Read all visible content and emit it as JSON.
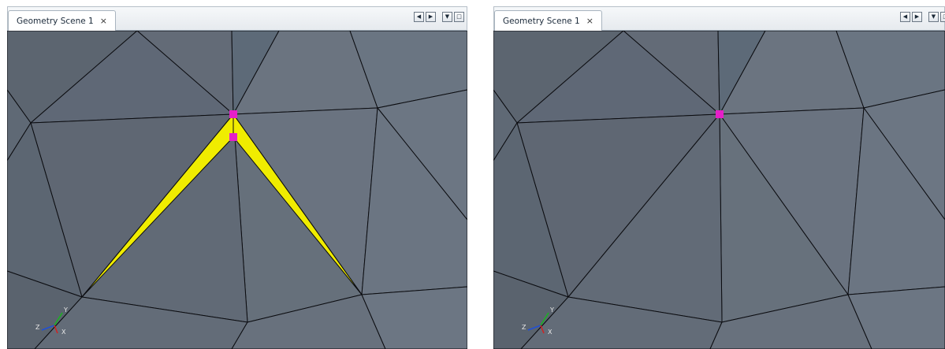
{
  "left_panel": {
    "tab_title": "Geometry Scene 1",
    "tab_close_glyph": "×",
    "controls": [
      "previous-arrow-icon",
      "next-arrow-icon",
      "dropdown-icon",
      "maximize-icon"
    ]
  },
  "right_panel": {
    "tab_title": "Geometry Scene 1",
    "tab_close_glyph": "×",
    "controls": [
      "previous-arrow-icon",
      "next-arrow-icon",
      "dropdown-icon",
      "maximize-icon"
    ]
  },
  "axes": {
    "x_label": "X",
    "y_label": "Y",
    "z_label": "Z"
  },
  "colors": {
    "mesh_background": "#646d7a",
    "mesh_edge": "#0b0c10",
    "highlight_fill": "#f0ec00",
    "vertex_marker": "#e61fc8",
    "axis_x": "#d42020",
    "axis_y": "#19b51f",
    "axis_z": "#1f4fd8"
  }
}
